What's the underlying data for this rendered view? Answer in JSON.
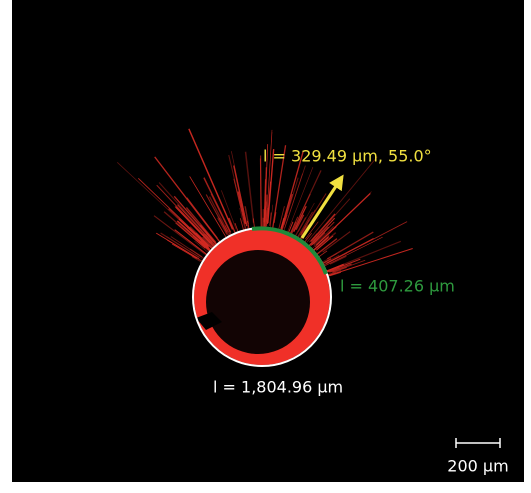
{
  "annotations": {
    "arrow_label": "l = 329.49 µm, 55.0°",
    "arc_label": "l = 407.26 µm",
    "perimeter_label": "l = 1,804.96 µm"
  },
  "scale_bar": {
    "label": "200 µm"
  }
}
